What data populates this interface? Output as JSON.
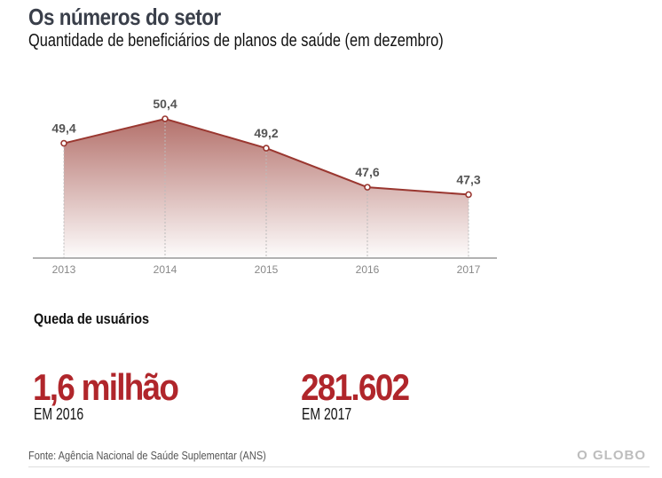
{
  "header": {
    "title": "Os números do setor",
    "subtitle": "Quantidade de beneficiários de planos de saúde (em dezembro)"
  },
  "chart_data": {
    "type": "area",
    "title": "Quantidade de beneficiários de planos de saúde (em dezembro)",
    "categories": [
      "2013",
      "2014",
      "2015",
      "2016",
      "2017"
    ],
    "values": [
      49.4,
      50.4,
      49.2,
      47.6,
      47.3
    ],
    "data_labels": [
      "49,4",
      "50,4",
      "49,2",
      "47,6",
      "47,3"
    ],
    "xlabel": "",
    "ylabel": "",
    "ylim": [
      44.7,
      50.4
    ],
    "grid": false,
    "colors": {
      "line": "#9a3730",
      "fill_top": "#b06a64",
      "label": "#555555",
      "axis": "#999999",
      "tick_label": "#888888"
    }
  },
  "section": {
    "title": "Queda de usuários",
    "stats": [
      {
        "value": "1,6 milhão",
        "label": "EM 2016"
      },
      {
        "value": "281.602",
        "label": "EM 2017"
      }
    ]
  },
  "footer": {
    "source": "Fonte: Agência Nacional de Saúde Suplementar (ANS)",
    "logo": "O GLOBO"
  },
  "colors": {
    "accent": "#b0262b"
  }
}
